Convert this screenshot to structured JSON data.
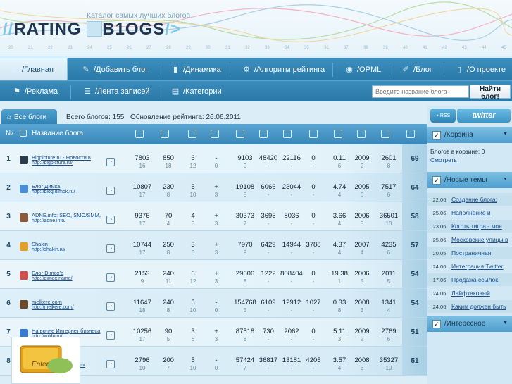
{
  "logo": {
    "prefix": "//",
    "rating": "RATING",
    "b": "B1OGS",
    "suffix": "/>"
  },
  "tagline": "Каталог самых лучших блогов",
  "ruler": [
    "20",
    "21",
    "22",
    "23",
    "24",
    "25",
    "26",
    "27",
    "28",
    "29",
    "30",
    "31",
    "32",
    "33",
    "34",
    "35",
    "36",
    "37",
    "38",
    "39",
    "40",
    "41",
    "42",
    "43",
    "44",
    "45"
  ],
  "nav1": [
    {
      "label": "/Главная",
      "icon": "home-icon",
      "active": true
    },
    {
      "label": "/Добавить блог",
      "icon": "add-icon"
    },
    {
      "label": "/Динамика",
      "icon": "bars-icon"
    },
    {
      "label": "/Алгоритм рейтинга",
      "icon": "algo-icon"
    },
    {
      "label": "/OPML",
      "icon": "opml-icon"
    },
    {
      "label": "/Блог",
      "icon": "pencil-icon"
    },
    {
      "label": "/О проекте",
      "icon": "book-icon"
    }
  ],
  "nav2": [
    {
      "label": "/Реклама",
      "icon": "ad-icon"
    },
    {
      "label": "/Лента записей",
      "icon": "feed-icon"
    },
    {
      "label": "/Категории",
      "icon": "category-icon"
    }
  ],
  "search": {
    "placeholder": "Введите название блога",
    "button": "Найти блог!"
  },
  "info": {
    "tab_all": "Все блоги",
    "total": "Всего блогов: 155",
    "updated": "Обновление рейтинга: 26.06.2011"
  },
  "table_header": {
    "num": "№",
    "name": "Название блога"
  },
  "rows": [
    {
      "rank": "1",
      "name": "Bigpicture.ru - Новости в",
      "url": "http://bigpicture.ru/",
      "v": [
        "7803",
        "850",
        "6",
        "-",
        "9103",
        "48420",
        "22116",
        "0",
        "0.11",
        "2009",
        "2601"
      ],
      "d": [
        "16",
        "18",
        "12",
        "0",
        "9",
        "-",
        "-",
        "-",
        "6",
        "2",
        "8"
      ],
      "plus": "+",
      "score": "69",
      "color": "#2a3c4a"
    },
    {
      "rank": "2",
      "name": "Блог Димка",
      "url": "http://blog.dimok.ru/",
      "v": [
        "10807",
        "230",
        "5",
        "+",
        "19108",
        "6066",
        "23044",
        "0",
        "4.74",
        "2005",
        "7517"
      ],
      "d": [
        "17",
        "8",
        "10",
        "3",
        "8",
        "-",
        "-",
        "-",
        "4",
        "6",
        "6"
      ],
      "plus": "-",
      "score": "64",
      "color": "#4a8fd2"
    },
    {
      "rank": "3",
      "name": "ADNE.info: SEO, SMO/SMM,",
      "url": "http://adne.info/",
      "v": [
        "9376",
        "70",
        "4",
        "+",
        "30373",
        "3695",
        "8036",
        "0",
        "3.66",
        "2006",
        "36501"
      ],
      "d": [
        "17",
        "4",
        "8",
        "3",
        "7",
        "-",
        "-",
        "-",
        "4",
        "5",
        "10"
      ],
      "plus": "-",
      "score": "58",
      "color": "#8a5a3a"
    },
    {
      "rank": "4",
      "name": "Shakin",
      "url": "http://shakin.ru/",
      "v": [
        "10744",
        "250",
        "3",
        "+",
        "7970",
        "6429",
        "14944",
        "3788",
        "4.37",
        "2007",
        "4235"
      ],
      "d": [
        "17",
        "8",
        "6",
        "3",
        "9",
        "-",
        "-",
        "-",
        "4",
        "4",
        "6"
      ],
      "plus": "-",
      "score": "57",
      "color": "#e0a030"
    },
    {
      "rank": "5",
      "name": "Блог Dimox'a",
      "url": "http://dimox.name/",
      "v": [
        "2153",
        "240",
        "6",
        "+",
        "29606",
        "1222",
        "808404",
        "0",
        "19.38",
        "2006",
        "2011"
      ],
      "d": [
        "9",
        "11",
        "12",
        "3",
        "8",
        "-",
        "-",
        "-",
        "1",
        "5",
        "5"
      ],
      "plus": "+",
      "score": "54",
      "color": "#d05050"
    },
    {
      "rank": "6",
      "name": "melkere.com",
      "url": "http://melkere.com/",
      "v": [
        "11647",
        "240",
        "5",
        "-",
        "154768",
        "6109",
        "12912",
        "1027",
        "0.33",
        "2008",
        "1341"
      ],
      "d": [
        "18",
        "8",
        "10",
        "0",
        "5",
        "-",
        "-",
        "-",
        "8",
        "3",
        "4"
      ],
      "plus": "-",
      "score": "54",
      "color": "#6a4a2a"
    },
    {
      "rank": "7",
      "name": "На волне Интернет бизнеса",
      "url": "http://wildo.ru/",
      "v": [
        "10256",
        "90",
        "3",
        "+",
        "87518",
        "730",
        "2062",
        "0",
        "5.11",
        "2009",
        "2769"
      ],
      "d": [
        "17",
        "5",
        "6",
        "3",
        "8",
        "-",
        "-",
        "-",
        "3",
        "2",
        "6"
      ],
      "plus": "+",
      "score": "51",
      "color": "#3a7ad0"
    },
    {
      "rank": "8",
      "name": "Twitter по-русски",
      "url": "http://www.rutwitter.com/",
      "v": [
        "2796",
        "200",
        "5",
        "-",
        "57424",
        "36817",
        "13181",
        "4205",
        "3.57",
        "2008",
        "35327"
      ],
      "d": [
        "10",
        "7",
        "10",
        "0",
        "7",
        "-",
        "-",
        "-",
        "4",
        "3",
        "10"
      ],
      "plus": "-",
      "score": "51",
      "color": "#3aa0d8"
    }
  ],
  "sidebar": {
    "rss": "RSS",
    "twitter": "twitter",
    "cart_title": "/Корзина",
    "cart_count": "Блогов в корзине: 0",
    "cart_view": "Смотреть",
    "news_title": "/Новые темы",
    "news": [
      {
        "date": "22.06",
        "title": "Создание блога:"
      },
      {
        "date": "25.06",
        "title": "Наполнение и"
      },
      {
        "date": "23.06",
        "title": "Коготь тигра - моя"
      },
      {
        "date": "25.06",
        "title": "Московские улицы в"
      },
      {
        "date": "20.05",
        "title": "Постраничная"
      },
      {
        "date": "24.06",
        "title": "Интеграция Twitter"
      },
      {
        "date": "17.06",
        "title": "Продажа ссылок."
      },
      {
        "date": "24.06",
        "title": "Лайфхаковый"
      },
      {
        "date": "24.06",
        "title": "Каким должен быть"
      }
    ],
    "interesting_title": "/Интересное",
    "banner_text": "Enter"
  }
}
